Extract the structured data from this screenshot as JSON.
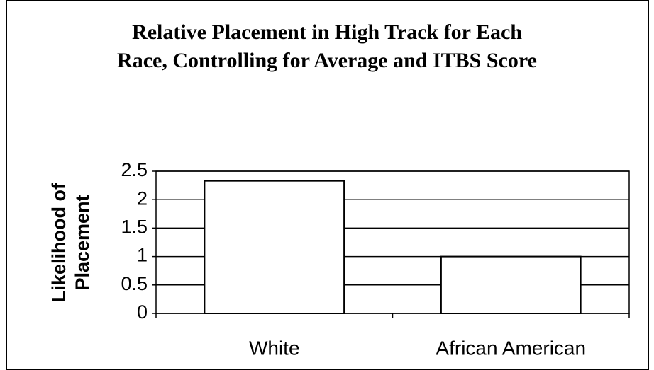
{
  "chart_data": {
    "type": "bar",
    "title": [
      "Relative Placement in High Track for Each",
      "Race, Controlling for Average and ITBS Score"
    ],
    "y_label": [
      "Likelihood of",
      "Placement"
    ],
    "categories": [
      "White",
      "African American"
    ],
    "values": [
      2.33,
      1
    ],
    "color": "#ffffff",
    "ylim": [
      0,
      2.5
    ],
    "yticks": [
      0,
      0.5,
      1,
      1.5,
      2,
      2.5
    ],
    "grid": true
  }
}
